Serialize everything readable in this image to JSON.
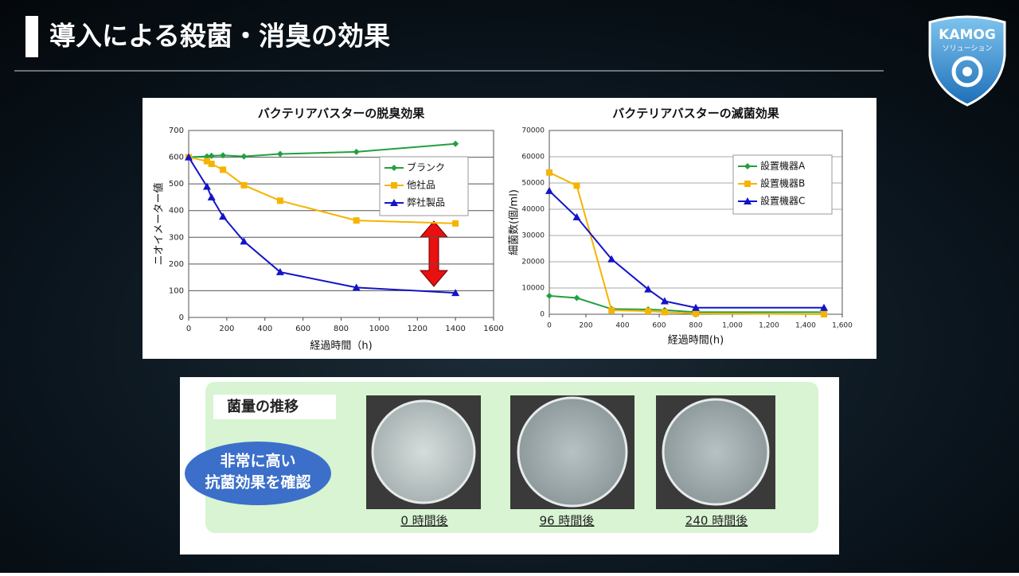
{
  "header": {
    "title": "導入による殺菌・消臭の効果"
  },
  "logo": {
    "brand": "KAMOG",
    "sub": "ソリューション"
  },
  "chart_data": [
    {
      "type": "line",
      "title": "バクテリアバスターの脱臭効果",
      "x_label": "経過時間（h)",
      "y_label": "ニオイメーター値",
      "xlim": [
        0,
        1600
      ],
      "xticks": [
        0,
        200,
        400,
        600,
        800,
        1000,
        1200,
        1400,
        1600
      ],
      "ylim": [
        0,
        700
      ],
      "yticks": [
        0,
        100,
        200,
        300,
        400,
        500,
        600,
        700
      ],
      "grid": true,
      "legend": "upper right",
      "series": [
        {
          "name": "ブランク",
          "color": "#22a040",
          "marker": "diamond",
          "x": [
            0,
            96,
            120,
            180,
            290,
            480,
            880,
            1400
          ],
          "values": [
            600,
            603,
            605,
            607,
            603,
            612,
            620,
            650
          ]
        },
        {
          "name": "他社品",
          "color": "#f5b400",
          "marker": "square",
          "x": [
            0,
            96,
            120,
            180,
            290,
            480,
            880,
            1400
          ],
          "values": [
            600,
            585,
            575,
            553,
            495,
            437,
            363,
            352
          ]
        },
        {
          "name": "弊社製品",
          "color": "#1414c8",
          "marker": "triangle",
          "x": [
            0,
            96,
            120,
            180,
            290,
            480,
            880,
            1400
          ],
          "values": [
            600,
            490,
            450,
            378,
            285,
            170,
            112,
            92
          ]
        }
      ]
    },
    {
      "type": "line",
      "title": "バクテリアバスターの滅菌効果",
      "x_label": "経過時間(h)",
      "y_label": "細菌数(個/ml)",
      "xlim": [
        0,
        1600
      ],
      "xticks": [
        0,
        200,
        400,
        600,
        800,
        {
          "value": 1000,
          "label": "1,000"
        },
        {
          "value": 1200,
          "label": "1,200"
        },
        {
          "value": 1400,
          "label": "1,400"
        },
        {
          "value": 1600,
          "label": "1,600"
        }
      ],
      "ylim": [
        0,
        70000
      ],
      "yticks": [
        0,
        10000,
        20000,
        30000,
        40000,
        50000,
        60000,
        70000
      ],
      "grid": true,
      "legend": "upper right",
      "series": [
        {
          "name": "設置機器A",
          "color": "#22a040",
          "marker": "diamond",
          "x": [
            0,
            150,
            340,
            540,
            630,
            800,
            1500
          ],
          "values": [
            7000,
            6200,
            2000,
            1800,
            1600,
            800,
            800
          ]
        },
        {
          "name": "設置機器B",
          "color": "#f5b400",
          "marker": "square",
          "x": [
            0,
            150,
            340,
            540,
            630,
            800,
            1500
          ],
          "values": [
            54000,
            49000,
            1500,
            1200,
            800,
            300,
            0
          ]
        },
        {
          "name": "設置機器C",
          "color": "#1414c8",
          "marker": "triangle",
          "x": [
            0,
            150,
            340,
            540,
            630,
            800,
            1500
          ],
          "values": [
            47000,
            37000,
            21000,
            9500,
            5000,
            2500,
            2500
          ]
        }
      ]
    }
  ],
  "panel": {
    "title": "菌量の推移",
    "callout": [
      "非常に高い",
      "抗菌効果を確認"
    ],
    "captions": [
      "0 時間後",
      "96 時間後",
      "240 時間後"
    ]
  }
}
